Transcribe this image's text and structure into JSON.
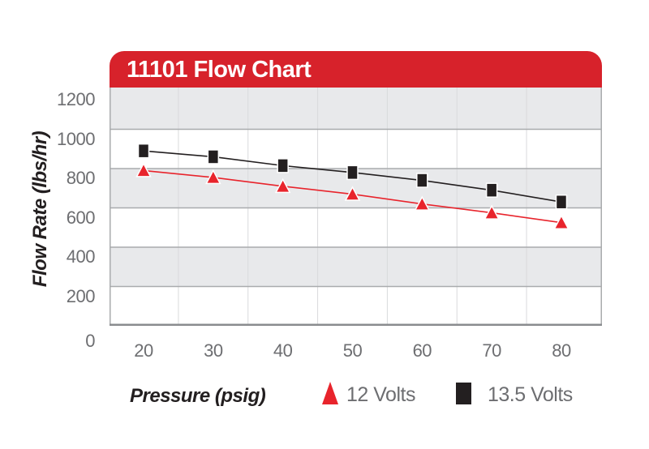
{
  "title": "11101 Flow Chart",
  "colors": {
    "banner_red": "#d7222b",
    "series_red": "#e8242c",
    "series_black": "#231f20",
    "band_gray": "#e8e9eb",
    "gridline_gray": "#a9abad",
    "minor_vertical_gridline": "#d9dadc",
    "axis_bottom_gray": "#8a8c8f",
    "tick_text_gray": "#6d6e71"
  },
  "chart_data": {
    "type": "line",
    "title": "11101 Flow Chart",
    "xlabel": "Pressure (psig)",
    "ylabel": "Flow Rate (lbs/hr)",
    "x": [
      20,
      30,
      40,
      50,
      60,
      70,
      80
    ],
    "xticks": [
      "20",
      "30",
      "40",
      "50",
      "60",
      "70",
      "80"
    ],
    "yticks": [
      "0",
      "200",
      "400",
      "600",
      "800",
      "1000",
      "1200"
    ],
    "ylim": [
      0,
      1200
    ],
    "grid": "horizontal gray/white bands every 200 plus faint vertical midlines between ticks",
    "legend_position": "bottom",
    "series": [
      {
        "name": "13.5 Volts",
        "marker": "square",
        "color": "#231f20",
        "values": [
          890,
          860,
          815,
          780,
          740,
          690,
          630
        ]
      },
      {
        "name": "12 Volts",
        "marker": "triangle",
        "color": "#e8242c",
        "values": [
          790,
          755,
          710,
          670,
          620,
          575,
          525
        ]
      }
    ]
  },
  "legend": {
    "items": [
      {
        "label": "12 Volts",
        "marker": "triangle",
        "color": "#e8242c"
      },
      {
        "label": "13.5 Volts",
        "marker": "square",
        "color": "#231f20"
      }
    ]
  }
}
